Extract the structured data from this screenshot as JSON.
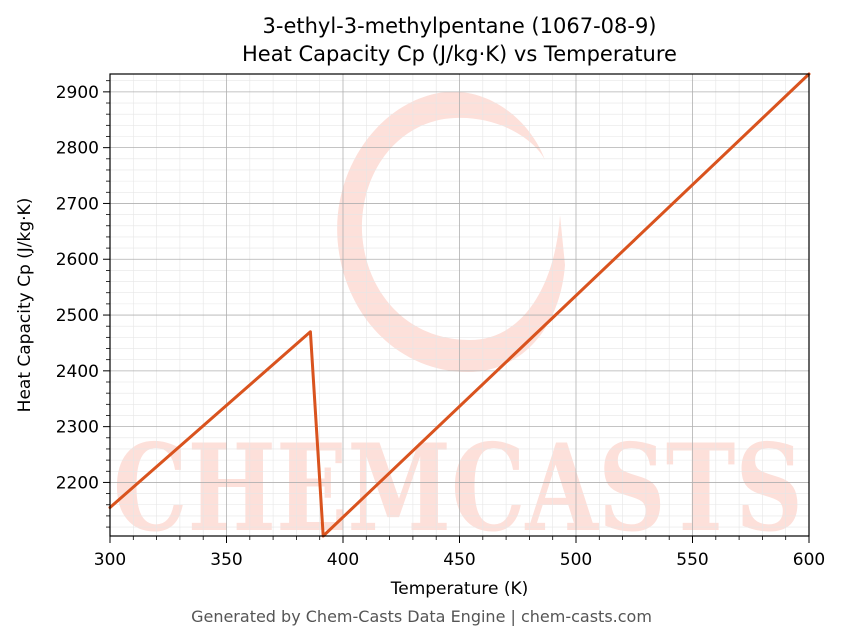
{
  "chart_data": {
    "type": "line",
    "title_line1": "3-ethyl-3-methylpentane (1067-08-9)",
    "title_line2": "Heat Capacity Cp (J/kg·K) vs Temperature",
    "xlabel": "Temperature (K)",
    "ylabel": "Heat Capacity Cp (J/kg·K)",
    "xlim": [
      300,
      600
    ],
    "ylim": [
      2104,
      2932
    ],
    "x_ticks": [
      300,
      350,
      400,
      450,
      500,
      550,
      600
    ],
    "y_ticks": [
      2200,
      2300,
      2400,
      2500,
      2600,
      2700,
      2800,
      2900
    ],
    "grid": true,
    "legend": "none",
    "series": [
      {
        "color": "#d9531e",
        "x": [
          300,
          386,
          391.5,
          600
        ],
        "y": [
          2155,
          2470,
          2104,
          2932
        ]
      }
    ]
  },
  "watermark": {
    "text": "CHEMCASTS",
    "color": "#fde0da"
  },
  "footer": "Generated by Chem-Casts Data Engine | chem-casts.com"
}
